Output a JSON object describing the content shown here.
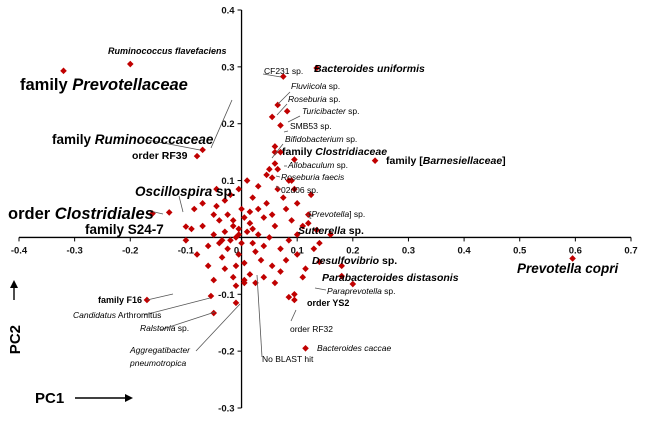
{
  "chart_data": {
    "type": "scatter",
    "title": "",
    "xlabel": "PC1",
    "ylabel": "PC2",
    "xlim": [
      -0.4,
      0.7
    ],
    "ylim": [
      -0.3,
      0.4
    ],
    "xticks": [
      -0.4,
      -0.3,
      -0.2,
      -0.1,
      0,
      0.1,
      0.2,
      0.3,
      0.4,
      0.5,
      0.6,
      0.7
    ],
    "xtick_labels": [
      "-0.4",
      "-0.3",
      "-0.2",
      "-0.1",
      "0",
      "0.1",
      "0.2",
      "0.3",
      "0.4",
      "0.5",
      "0.6",
      "0.7"
    ],
    "yticks": [
      -0.3,
      -0.2,
      -0.1,
      0.1,
      0.2,
      0.3,
      0.4
    ],
    "ytick_labels": [
      "-0.3",
      "-0.2",
      "-0.1",
      "0.1",
      "0.2",
      "0.3",
      "0.4"
    ],
    "marker_color": "#c00000",
    "labeled_points": [
      {
        "x": -0.32,
        "y": 0.293,
        "parts": [
          [
            "family ",
            "n"
          ],
          [
            "Prevotellaceae",
            "i"
          ]
        ],
        "style": "xl",
        "anchor": "end"
      },
      {
        "x": -0.2,
        "y": 0.305,
        "parts": [
          [
            "Ruminococcus flavefaciens",
            "i"
          ]
        ],
        "style": "sb",
        "anchor": "end"
      },
      {
        "x": -0.07,
        "y": 0.154,
        "parts": [
          [
            "family ",
            "n"
          ],
          [
            "Ruminococcaceae",
            "i"
          ]
        ],
        "style": "lg",
        "anchor": "end"
      },
      {
        "x": -0.08,
        "y": 0.143,
        "parts": [
          [
            "order RF39",
            "n"
          ]
        ],
        "style": "mb",
        "anchor": "end"
      },
      {
        "x": -0.13,
        "y": 0.044,
        "parts": [
          [
            "Oscillospira",
            "i"
          ],
          [
            " sp.",
            "n"
          ]
        ],
        "style": "lg",
        "anchor": "end"
      },
      {
        "x": -0.16,
        "y": 0.042,
        "parts": [
          [
            "order ",
            "n"
          ],
          [
            "Clostridiales",
            "i"
          ]
        ],
        "style": "xl",
        "anchor": "end"
      },
      {
        "x": -0.1,
        "y": 0.019,
        "parts": [
          [
            "family S24-7",
            "n"
          ]
        ],
        "style": "lg",
        "anchor": "end"
      },
      {
        "x": 0.06,
        "y": 0.283,
        "parts": [
          [
            "CF231 sp.",
            "n"
          ]
        ],
        "style": "sm",
        "anchor": "end"
      },
      {
        "x": 0.135,
        "y": 0.298,
        "parts": [
          [
            "Bacteroides uniformis",
            "i"
          ]
        ],
        "style": "mb",
        "anchor": "start"
      },
      {
        "x": 0.065,
        "y": 0.233,
        "parts": [
          [
            "Fluviicola",
            "i"
          ],
          [
            " sp.",
            "n"
          ]
        ],
        "style": "sm",
        "anchor": "start"
      },
      {
        "x": 0.055,
        "y": 0.212,
        "parts": [
          [
            "Roseburia",
            "i"
          ],
          [
            " sp.",
            "n"
          ]
        ],
        "style": "sm",
        "anchor": "start"
      },
      {
        "x": 0.082,
        "y": 0.222,
        "parts": [
          [
            "Turicibacter",
            "i"
          ],
          [
            " sp.",
            "n"
          ]
        ],
        "style": "sm",
        "anchor": "start"
      },
      {
        "x": 0.07,
        "y": 0.197,
        "parts": [
          [
            "SMB53 sp.",
            "n"
          ]
        ],
        "style": "sm",
        "anchor": "start"
      },
      {
        "x": 0.06,
        "y": 0.16,
        "parts": [
          [
            "Bifidobacterium",
            "i"
          ],
          [
            " sp.",
            "n"
          ]
        ],
        "style": "sm",
        "anchor": "start"
      },
      {
        "x": 0.06,
        "y": 0.15,
        "parts": [
          [
            "family ",
            "n"
          ],
          [
            "Clostridiaceae",
            "i"
          ]
        ],
        "style": "mb",
        "anchor": "start"
      },
      {
        "x": 0.095,
        "y": 0.137,
        "parts": [
          [
            "Allobaculum",
            "i"
          ],
          [
            " sp.",
            "n"
          ]
        ],
        "style": "sm",
        "anchor": "start"
      },
      {
        "x": 0.24,
        "y": 0.135,
        "parts": [
          [
            "family [",
            "n"
          ],
          [
            "Barnesiellaceae",
            "i"
          ],
          [
            "]",
            "n"
          ]
        ],
        "style": "mb",
        "anchor": "start"
      },
      {
        "x": 0.065,
        "y": 0.12,
        "parts": [
          [
            "Roseburia faecis",
            "i"
          ]
        ],
        "style": "sm",
        "anchor": "start"
      },
      {
        "x": 0.055,
        "y": 0.105,
        "parts": [
          [
            "02d06 sp.",
            "n"
          ]
        ],
        "style": "sm",
        "anchor": "start"
      },
      {
        "x": 0.12,
        "y": 0.025,
        "parts": [
          [
            "[",
            "n"
          ],
          [
            "Prevotella",
            "i"
          ],
          [
            "] sp.",
            "n"
          ]
        ],
        "style": "sm",
        "anchor": "start"
      },
      {
        "x": 0.135,
        "y": 0.013,
        "parts": [
          [
            "Sutterella",
            "i"
          ],
          [
            " sp.",
            "n"
          ]
        ],
        "style": "mb",
        "anchor": "start"
      },
      {
        "x": 0.59,
        "y": -0.037,
        "parts": [
          [
            "Prevotella copri",
            "i"
          ]
        ],
        "style": "lg",
        "anchor": "end"
      },
      {
        "x": 0.14,
        "y": -0.043,
        "parts": [
          [
            "Desulfovibrio",
            "i"
          ],
          [
            " sp.",
            "n"
          ]
        ],
        "style": "mb",
        "anchor": "start"
      },
      {
        "x": 0.18,
        "y": -0.068,
        "parts": [
          [
            "Parabacteroides distasonis",
            "i"
          ]
        ],
        "style": "mb",
        "anchor": "start"
      },
      {
        "x": 0.2,
        "y": -0.082,
        "parts": [
          [
            "Paraprevotella",
            "i"
          ],
          [
            " sp.",
            "n"
          ]
        ],
        "style": "sm",
        "anchor": "start"
      },
      {
        "x": -0.17,
        "y": -0.11,
        "parts": [
          [
            "family F16",
            "n"
          ]
        ],
        "style": "sb",
        "anchor": "end"
      },
      {
        "x": 0.095,
        "y": -0.11,
        "parts": [
          [
            "order YS2",
            "n"
          ]
        ],
        "style": "sb",
        "anchor": "start"
      },
      {
        "x": -0.055,
        "y": -0.103,
        "parts": [
          [
            "Candidatus",
            "i"
          ],
          [
            " Arthromitus",
            "n"
          ]
        ],
        "style": "sm",
        "anchor": "end"
      },
      {
        "x": -0.05,
        "y": -0.133,
        "parts": [
          [
            "Ralstonia",
            "i"
          ],
          [
            " sp.",
            "n"
          ]
        ],
        "style": "sm",
        "anchor": "end"
      },
      {
        "x": 0.095,
        "y": -0.1,
        "parts": [
          [
            "order RF32",
            "n"
          ]
        ],
        "style": "sm",
        "anchor": "start"
      },
      {
        "x": -0.01,
        "y": -0.115,
        "parts": [
          [
            "Aggregatibacter",
            "i"
          ]
        ],
        "style": "sm",
        "anchor": "end"
      },
      {
        "x": -0.01,
        "y": -0.115,
        "parts": [
          [
            "pneumotropica",
            "i"
          ]
        ],
        "style": "sm",
        "anchor": "end"
      },
      {
        "x": 0.115,
        "y": -0.195,
        "parts": [
          [
            "Bacteroides caccae",
            "i"
          ]
        ],
        "style": "sm",
        "anchor": "start"
      },
      {
        "x": 0.005,
        "y": -0.08,
        "parts": [
          [
            "No BLAST hit",
            "n"
          ]
        ],
        "style": "sm",
        "anchor": "start"
      }
    ],
    "other_points": [
      [
        -0.005,
        0.005
      ],
      [
        -0.01,
        0.0
      ],
      [
        0.0,
        -0.01
      ],
      [
        0.01,
        0.01
      ],
      [
        -0.02,
        -0.005
      ],
      [
        0.02,
        -0.01
      ],
      [
        -0.015,
        0.02
      ],
      [
        0.015,
        0.025
      ],
      [
        -0.03,
        0.01
      ],
      [
        0.03,
        0.005
      ],
      [
        -0.025,
        -0.02
      ],
      [
        0.025,
        -0.025
      ],
      [
        -0.005,
        -0.03
      ],
      [
        0.005,
        0.035
      ],
      [
        -0.04,
        0.03
      ],
      [
        0.04,
        0.035
      ],
      [
        -0.035,
        -0.035
      ],
      [
        0.035,
        -0.04
      ],
      [
        0.0,
        0.05
      ],
      [
        -0.01,
        -0.05
      ],
      [
        0.05,
        0.0
      ],
      [
        -0.05,
        0.005
      ],
      [
        0.06,
        0.02
      ],
      [
        -0.06,
        -0.015
      ],
      [
        0.045,
        0.06
      ],
      [
        -0.045,
        0.055
      ],
      [
        0.07,
        -0.02
      ],
      [
        -0.07,
        0.02
      ],
      [
        0.02,
        0.07
      ],
      [
        -0.02,
        0.075
      ],
      [
        0.08,
        0.05
      ],
      [
        0.09,
        0.03
      ],
      [
        0.1,
        0.06
      ],
      [
        0.085,
        -0.005
      ],
      [
        0.11,
        0.02
      ],
      [
        0.12,
        0.04
      ],
      [
        0.065,
        0.085
      ],
      [
        0.075,
        0.07
      ],
      [
        0.095,
        0.085
      ],
      [
        0.055,
        -0.05
      ],
      [
        0.07,
        -0.06
      ],
      [
        0.04,
        -0.07
      ],
      [
        0.1,
        -0.03
      ],
      [
        0.115,
        -0.055
      ],
      [
        0.13,
        -0.02
      ],
      [
        0.16,
        0.005
      ],
      [
        0.015,
        -0.065
      ],
      [
        -0.015,
        -0.07
      ],
      [
        0.03,
        0.09
      ],
      [
        0.01,
        0.1
      ],
      [
        -0.005,
        0.085
      ],
      [
        -0.03,
        0.065
      ],
      [
        0.045,
        0.11
      ],
      [
        0.085,
        0.1
      ],
      [
        0.06,
        0.13
      ],
      [
        -0.045,
        0.085
      ],
      [
        -0.07,
        0.06
      ],
      [
        -0.09,
        0.015
      ],
      [
        -0.08,
        -0.03
      ],
      [
        -0.06,
        -0.05
      ],
      [
        -0.05,
        -0.075
      ],
      [
        -0.03,
        -0.055
      ],
      [
        0.025,
        -0.08
      ],
      [
        0.005,
        -0.075
      ],
      [
        -0.01,
        -0.085
      ],
      [
        0.06,
        -0.08
      ],
      [
        0.08,
        -0.04
      ],
      [
        0.14,
        -0.01
      ],
      [
        0.1,
        0.005
      ],
      [
        0.09,
        0.1
      ],
      [
        0.07,
        0.15
      ],
      [
        0.05,
        0.12
      ],
      [
        -0.04,
        -0.01
      ],
      [
        0.015,
        0.045
      ],
      [
        -0.025,
        0.04
      ],
      [
        0.04,
        -0.015
      ],
      [
        0.005,
        -0.045
      ],
      [
        -0.015,
        0.03
      ],
      [
        0.02,
        0.015
      ],
      [
        -0.035,
        -0.005
      ],
      [
        0.03,
        0.05
      ],
      [
        -0.05,
        0.04
      ],
      [
        0.055,
        0.04
      ],
      [
        -0.005,
        0.015
      ],
      [
        0.18,
        -0.05
      ],
      [
        0.11,
        -0.07
      ],
      [
        0.125,
        0.075
      ],
      [
        -0.085,
        0.05
      ],
      [
        -0.1,
        -0.005
      ]
    ],
    "point_anchors": [
      [
        -0.32,
        0.293
      ],
      [
        -0.2,
        0.305
      ],
      [
        -0.07,
        0.154
      ],
      [
        -0.08,
        0.143
      ],
      [
        -0.13,
        0.044
      ],
      [
        -0.16,
        0.042
      ],
      [
        -0.1,
        0.019
      ],
      [
        0.075,
        0.283
      ],
      [
        0.135,
        0.298
      ],
      [
        0.065,
        0.233
      ],
      [
        0.055,
        0.212
      ],
      [
        0.082,
        0.222
      ],
      [
        0.07,
        0.197
      ],
      [
        0.06,
        0.16
      ],
      [
        0.06,
        0.15
      ],
      [
        0.095,
        0.137
      ],
      [
        0.24,
        0.135
      ],
      [
        0.065,
        0.12
      ],
      [
        0.055,
        0.105
      ],
      [
        0.12,
        0.025
      ],
      [
        0.135,
        0.013
      ],
      [
        0.595,
        -0.037
      ],
      [
        0.14,
        -0.043
      ],
      [
        0.18,
        -0.068
      ],
      [
        0.2,
        -0.082
      ],
      [
        -0.17,
        -0.11
      ],
      [
        0.095,
        -0.11
      ],
      [
        -0.055,
        -0.103
      ],
      [
        -0.05,
        -0.133
      ],
      [
        0.095,
        -0.1
      ],
      [
        -0.01,
        -0.115
      ],
      [
        0.115,
        -0.195
      ],
      [
        0.005,
        -0.08
      ],
      [
        0.085,
        -0.105
      ]
    ]
  }
}
